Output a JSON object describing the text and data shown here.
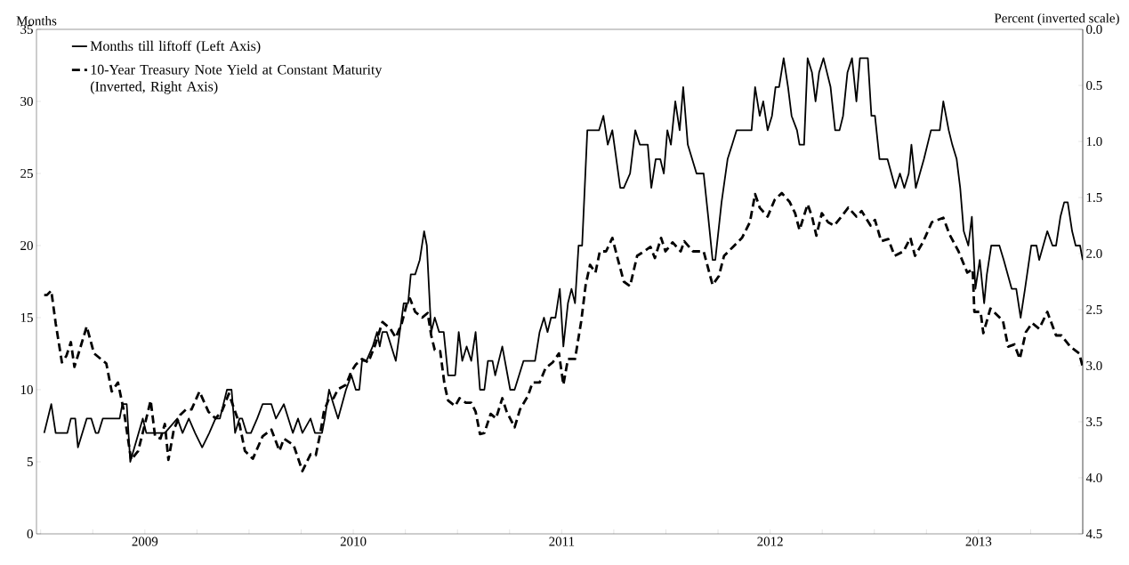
{
  "chart_data": {
    "type": "line",
    "ylabel": "Months",
    "y2label": "Percent (inverted scale)",
    "legend": "top left",
    "marker": "none",
    "xlim": [
      2008.98,
      2014.0
    ],
    "xticks": [
      {
        "value": 2009.0,
        "label": null
      },
      {
        "value": 2009.25,
        "label": null
      },
      {
        "value": 2009.5,
        "label": "2009"
      },
      {
        "value": 2009.75,
        "label": null
      },
      {
        "value": 2010.0,
        "label": null
      },
      {
        "value": 2010.25,
        "label": null
      },
      {
        "value": 2010.5,
        "label": "2010"
      },
      {
        "value": 2010.75,
        "label": null
      },
      {
        "value": 2011.0,
        "label": null
      },
      {
        "value": 2011.25,
        "label": null
      },
      {
        "value": 2011.5,
        "label": "2011"
      },
      {
        "value": 2011.75,
        "label": null
      },
      {
        "value": 2012.0,
        "label": null
      },
      {
        "value": 2012.25,
        "label": null
      },
      {
        "value": 2012.5,
        "label": "2012"
      },
      {
        "value": 2012.75,
        "label": null
      },
      {
        "value": 2013.0,
        "label": null
      },
      {
        "value": 2013.25,
        "label": null
      },
      {
        "value": 2013.5,
        "label": "2013"
      },
      {
        "value": 2013.75,
        "label": null
      },
      {
        "value": 2014.0,
        "label": null
      }
    ],
    "ylim": [
      0,
      35
    ],
    "yticks": [
      0,
      5,
      10,
      15,
      20,
      25,
      30,
      35
    ],
    "y2lim": [
      4.5,
      0.0
    ],
    "y2ticks": [
      {
        "value": 0.0,
        "label": "0.0"
      },
      {
        "value": 0.5,
        "label": "0.5"
      },
      {
        "value": 1.0,
        "label": "1.0"
      },
      {
        "value": 1.5,
        "label": "1.5"
      },
      {
        "value": 2.0,
        "label": "2.0"
      },
      {
        "value": 2.5,
        "label": "2.5"
      },
      {
        "value": 3.0,
        "label": "3.0"
      },
      {
        "value": 3.5,
        "label": "3.5"
      },
      {
        "value": 4.0,
        "label": "4.0"
      },
      {
        "value": 4.5,
        "label": "4.5"
      }
    ],
    "series": [
      {
        "name": "Months till liftoff (Left Axis)",
        "color": "#000000",
        "line_style": "solid",
        "x": [
          2009.017,
          2009.051,
          2009.072,
          2009.128,
          2009.145,
          2009.166,
          2009.179,
          2009.221,
          2009.243,
          2009.264,
          2009.277,
          2009.298,
          2009.379,
          2009.392,
          2009.413,
          2009.43,
          2009.49,
          2009.507,
          2009.596,
          2009.656,
          2009.681,
          2009.711,
          2009.741,
          2009.775,
          2009.809,
          2009.839,
          2009.86,
          2009.894,
          2009.916,
          2009.933,
          2009.954,
          2009.967,
          2009.988,
          2010.009,
          2010.039,
          2010.065,
          2010.107,
          2010.129,
          2010.167,
          2010.21,
          2010.235,
          2010.256,
          2010.295,
          2010.316,
          2010.35,
          2010.363,
          2010.384,
          2010.405,
          2010.427,
          2010.465,
          2010.491,
          2010.512,
          2010.529,
          2010.542,
          2010.563,
          2010.593,
          2010.614,
          2010.627,
          2010.64,
          2010.661,
          2010.704,
          2010.742,
          2010.763,
          2010.776,
          2010.797,
          2010.819,
          2010.84,
          2010.853,
          2010.874,
          2010.891,
          2010.912,
          2010.934,
          2010.955,
          2010.989,
          2011.006,
          2011.023,
          2011.044,
          2011.066,
          2011.087,
          2011.108,
          2011.129,
          2011.146,
          2011.168,
          2011.181,
          2011.215,
          2011.253,
          2011.274,
          2011.317,
          2011.372,
          2011.394,
          2011.415,
          2011.432,
          2011.449,
          2011.47,
          2011.491,
          2011.508,
          2011.53,
          2011.547,
          2011.564,
          2011.581,
          2011.598,
          2011.623,
          2011.679,
          2011.7,
          2011.721,
          2011.743,
          2011.781,
          2011.798,
          2011.828,
          2011.853,
          2011.875,
          2011.913,
          2011.93,
          2011.951,
          2011.973,
          2011.99,
          2012.007,
          2012.024,
          2012.045,
          2012.066,
          2012.083,
          2012.105,
          2012.126,
          2012.147,
          2012.181,
          2012.203,
          2012.224,
          2012.237,
          2012.267,
          2012.296,
          2012.318,
          2012.339,
          2012.411,
          2012.428,
          2012.45,
          2012.467,
          2012.488,
          2012.509,
          2012.526,
          2012.543,
          2012.565,
          2012.586,
          2012.603,
          2012.629,
          2012.641,
          2012.663,
          2012.68,
          2012.701,
          2012.718,
          2012.735,
          2012.756,
          2012.773,
          2012.79,
          2012.812,
          2012.833,
          2012.85,
          2012.871,
          2012.893,
          2012.914,
          2012.931,
          2012.969,
          2012.986,
          2013.003,
          2013.025,
          2013.063,
          2013.101,
          2013.123,
          2013.144,
          2013.165,
          2013.178,
          2013.199,
          2013.238,
          2013.272,
          2013.314,
          2013.331,
          2013.357,
          2013.374,
          2013.395,
          2013.412,
          2013.429,
          2013.451,
          2013.468,
          2013.485,
          2013.506,
          2013.527,
          2013.54,
          2013.561,
          2013.6,
          2013.621,
          2013.659,
          2013.681,
          2013.702,
          2013.723,
          2013.753,
          2013.778,
          2013.791,
          2013.83,
          2013.855,
          2013.872,
          2013.893,
          2013.911,
          2013.928,
          2013.949,
          2013.966,
          2013.987,
          2014.0
        ],
        "values": [
          7,
          9,
          7,
          7,
          8,
          8,
          6,
          8,
          8,
          7,
          7,
          8,
          8,
          9,
          9,
          5,
          8,
          7,
          7,
          8,
          7,
          8,
          7,
          6,
          7,
          8,
          8,
          10,
          10,
          7,
          8,
          8,
          7,
          7,
          8,
          9,
          9,
          8,
          9,
          7,
          8,
          7,
          8,
          7,
          7,
          8,
          10,
          9,
          8,
          10,
          11,
          10,
          10,
          12,
          12,
          13,
          14,
          13,
          14,
          14,
          12,
          16,
          16,
          18,
          18,
          19,
          21,
          20,
          14,
          15,
          14,
          14,
          11,
          11,
          14,
          12,
          13,
          12,
          14,
          10,
          10,
          12,
          12,
          11,
          13,
          10,
          10,
          12,
          12,
          14,
          15,
          14,
          15,
          15,
          17,
          13,
          16,
          17,
          16,
          20,
          20,
          28,
          28,
          29,
          27,
          28,
          24,
          24,
          25,
          28,
          27,
          27,
          24,
          26,
          26,
          25,
          28,
          27,
          30,
          28,
          31,
          27,
          26,
          25,
          25,
          22,
          19,
          19,
          23,
          26,
          27,
          28,
          28,
          31,
          29,
          30,
          28,
          29,
          31,
          31,
          33,
          31,
          29,
          28,
          27,
          27,
          33,
          32,
          30,
          32,
          33,
          32,
          31,
          28,
          28,
          29,
          32,
          33,
          30,
          33,
          33,
          29,
          29,
          26,
          26,
          24,
          25,
          24,
          25,
          27,
          24,
          26,
          28,
          28,
          30,
          28,
          27,
          26,
          24,
          21,
          20,
          22,
          17,
          19,
          16,
          18,
          20,
          20,
          19,
          17,
          17,
          15,
          17,
          20,
          20,
          19,
          21,
          20,
          20,
          22,
          23,
          23,
          21,
          20,
          20,
          19
        ]
      },
      {
        "name": "10-Year Treasury Note Yield at Constant Maturity (Inverted, Right Axis)",
        "color": "#000000",
        "line_style": "dashed",
        "axis": "y2",
        "x": [
          2009.017,
          2009.03,
          2009.051,
          2009.072,
          2009.102,
          2009.124,
          2009.145,
          2009.162,
          2009.187,
          2009.221,
          2009.256,
          2009.315,
          2009.341,
          2009.371,
          2009.4,
          2009.434,
          2009.468,
          2009.507,
          2009.528,
          2009.549,
          2009.575,
          2009.596,
          2009.613,
          2009.639,
          2009.669,
          2009.698,
          2009.724,
          2009.762,
          2009.805,
          2009.839,
          2009.869,
          2009.903,
          2009.954,
          2009.98,
          2010.018,
          2010.065,
          2010.107,
          2010.146,
          2010.167,
          2010.214,
          2010.256,
          2010.295,
          2010.32,
          2010.342,
          2010.359,
          2010.384,
          2010.405,
          2010.427,
          2010.465,
          2010.491,
          2010.512,
          2010.542,
          2010.572,
          2010.606,
          2010.64,
          2010.678,
          2010.704,
          2010.733,
          2010.755,
          2010.772,
          2010.797,
          2010.831,
          2010.857,
          2010.874,
          2010.891,
          2010.917,
          2010.938,
          2010.955,
          2010.989,
          2011.01,
          2011.04,
          2011.066,
          2011.087,
          2011.108,
          2011.129,
          2011.159,
          2011.185,
          2011.215,
          2011.236,
          2011.274,
          2011.3,
          2011.338,
          2011.36,
          2011.394,
          2011.423,
          2011.457,
          2011.487,
          2011.508,
          2011.53,
          2011.564,
          2011.594,
          2011.615,
          2011.636,
          2011.662,
          2011.683,
          2011.713,
          2011.743,
          2011.768,
          2011.798,
          2011.828,
          2011.862,
          2011.896,
          2011.926,
          2011.947,
          2011.977,
          2011.998,
          2012.032,
          2012.071,
          2012.088,
          2012.13,
          2012.181,
          2012.224,
          2012.254,
          2012.279,
          2012.322,
          2012.365,
          2012.403,
          2012.428,
          2012.45,
          2012.488,
          2012.522,
          2012.556,
          2012.594,
          2012.62,
          2012.641,
          2012.68,
          2012.701,
          2012.722,
          2012.748,
          2012.778,
          2012.807,
          2012.842,
          2012.875,
          2012.914,
          2012.939,
          2012.982,
          2013.003,
          2013.033,
          2013.067,
          2013.097,
          2013.14,
          2013.173,
          2013.195,
          2013.233,
          2013.276,
          2013.331,
          2013.361,
          2013.404,
          2013.446,
          2013.472,
          2013.48,
          2013.51,
          2013.523,
          2013.557,
          2013.617,
          2013.642,
          2013.672,
          2013.698,
          2013.727,
          2013.757,
          2013.791,
          2013.83,
          2013.872,
          2013.898,
          2013.94,
          2013.983,
          2014.0
        ],
        "values": [
          2.37,
          2.37,
          2.33,
          2.62,
          2.97,
          2.91,
          2.79,
          3.01,
          2.86,
          2.65,
          2.89,
          2.98,
          3.23,
          3.15,
          3.41,
          3.84,
          3.76,
          3.47,
          3.31,
          3.63,
          3.65,
          3.52,
          3.84,
          3.57,
          3.44,
          3.39,
          3.39,
          3.23,
          3.41,
          3.47,
          3.41,
          3.25,
          3.52,
          3.76,
          3.83,
          3.63,
          3.57,
          3.76,
          3.65,
          3.71,
          3.94,
          3.79,
          3.8,
          3.6,
          3.41,
          3.29,
          3.29,
          3.21,
          3.17,
          3.05,
          2.99,
          2.94,
          2.97,
          2.81,
          2.61,
          2.67,
          2.75,
          2.62,
          2.46,
          2.4,
          2.52,
          2.57,
          2.53,
          2.73,
          2.86,
          2.87,
          3.17,
          3.31,
          3.36,
          3.29,
          3.33,
          3.33,
          3.41,
          3.61,
          3.6,
          3.43,
          3.47,
          3.29,
          3.41,
          3.55,
          3.39,
          3.27,
          3.15,
          3.15,
          3.02,
          2.97,
          2.89,
          3.17,
          2.94,
          2.94,
          2.6,
          2.28,
          2.1,
          2.17,
          1.98,
          1.98,
          1.86,
          2.04,
          2.25,
          2.29,
          2.02,
          1.98,
          1.94,
          2.04,
          1.86,
          1.98,
          1.9,
          1.98,
          1.89,
          1.98,
          1.98,
          2.28,
          2.2,
          2.02,
          1.94,
          1.86,
          1.72,
          1.47,
          1.59,
          1.67,
          1.52,
          1.46,
          1.54,
          1.64,
          1.79,
          1.56,
          1.67,
          1.84,
          1.64,
          1.72,
          1.75,
          1.67,
          1.59,
          1.67,
          1.62,
          1.75,
          1.7,
          1.89,
          1.87,
          2.02,
          1.98,
          1.86,
          2.02,
          1.9,
          1.72,
          1.68,
          1.83,
          1.98,
          2.17,
          2.14,
          2.52,
          2.52,
          2.71,
          2.49,
          2.6,
          2.83,
          2.81,
          2.94,
          2.7,
          2.62,
          2.67,
          2.52,
          2.73,
          2.73,
          2.83,
          2.89,
          3.01
        ]
      }
    ]
  }
}
